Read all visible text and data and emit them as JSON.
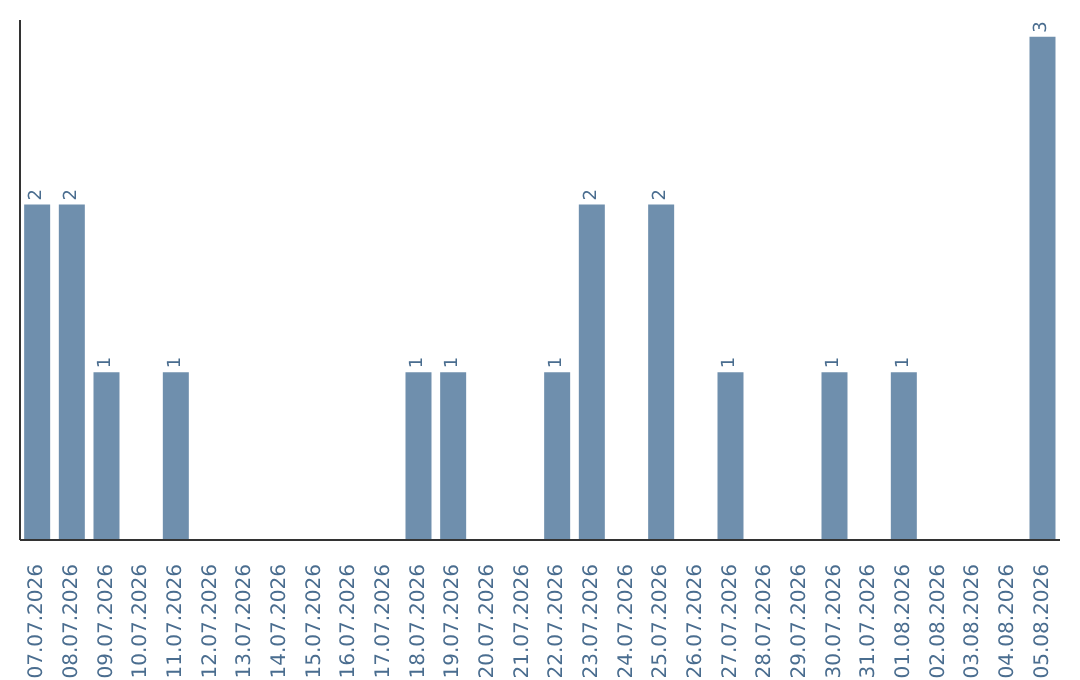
{
  "chart_data": {
    "type": "bar",
    "categories": [
      "07.07.2026",
      "08.07.2026",
      "09.07.2026",
      "10.07.2026",
      "11.07.2026",
      "12.07.2026",
      "13.07.2026",
      "14.07.2026",
      "15.07.2026",
      "16.07.2026",
      "17.07.2026",
      "18.07.2026",
      "19.07.2026",
      "20.07.2026",
      "21.07.2026",
      "22.07.2026",
      "23.07.2026",
      "24.07.2026",
      "25.07.2026",
      "26.07.2026",
      "27.07.2026",
      "28.07.2026",
      "29.07.2026",
      "30.07.2026",
      "31.07.2026",
      "01.08.2026",
      "02.08.2026",
      "03.08.2026",
      "04.08.2026",
      "05.08.2026"
    ],
    "values": [
      2,
      2,
      1,
      0,
      1,
      0,
      0,
      0,
      0,
      0,
      0,
      1,
      1,
      0,
      0,
      1,
      2,
      0,
      2,
      0,
      1,
      0,
      0,
      1,
      0,
      1,
      0,
      0,
      0,
      3
    ],
    "value_labels": [
      "2",
      "2",
      "1",
      null,
      "1",
      null,
      null,
      null,
      null,
      null,
      null,
      "1",
      "1",
      null,
      null,
      "1",
      "2",
      null,
      "2",
      null,
      "1",
      null,
      null,
      "1",
      null,
      "1",
      null,
      null,
      null,
      "3"
    ],
    "color": "#6f8fad",
    "ylim": [
      0,
      3.1
    ],
    "tick_labels": "x",
    "grid": false
  }
}
